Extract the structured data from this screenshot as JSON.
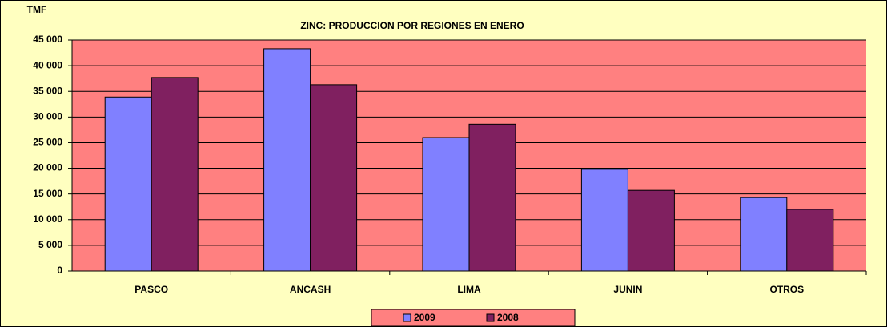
{
  "chart_data": {
    "type": "bar",
    "title": "ZINC: PRODUCCION POR REGIONES EN ENERO",
    "y_label": "TMF",
    "categories": [
      "PASCO",
      "ANCASH",
      "LIMA",
      "JUNIN",
      "OTROS"
    ],
    "series": [
      {
        "name": "2009",
        "color": "#8080ff",
        "values": [
          33900,
          43300,
          26000,
          19800,
          14300
        ]
      },
      {
        "name": "2008",
        "color": "#802060",
        "values": [
          37700,
          36300,
          28600,
          15700,
          12000
        ]
      }
    ],
    "ylim": [
      0,
      45000
    ],
    "yticks": [
      0,
      {
        "value": 5000,
        "label": "5 000"
      },
      {
        "value": 10000,
        "label": "10 000"
      },
      {
        "value": 15000,
        "label": "15 000"
      },
      {
        "value": 20000,
        "label": "20 000"
      },
      {
        "value": 25000,
        "label": "25 000"
      },
      {
        "value": 30000,
        "label": "30 000"
      },
      {
        "value": 35000,
        "label": "35 000"
      },
      {
        "value": 40000,
        "label": "40 000"
      },
      {
        "value": 45000,
        "label": "45 000"
      }
    ],
    "grid": true,
    "legend": "bottom"
  }
}
